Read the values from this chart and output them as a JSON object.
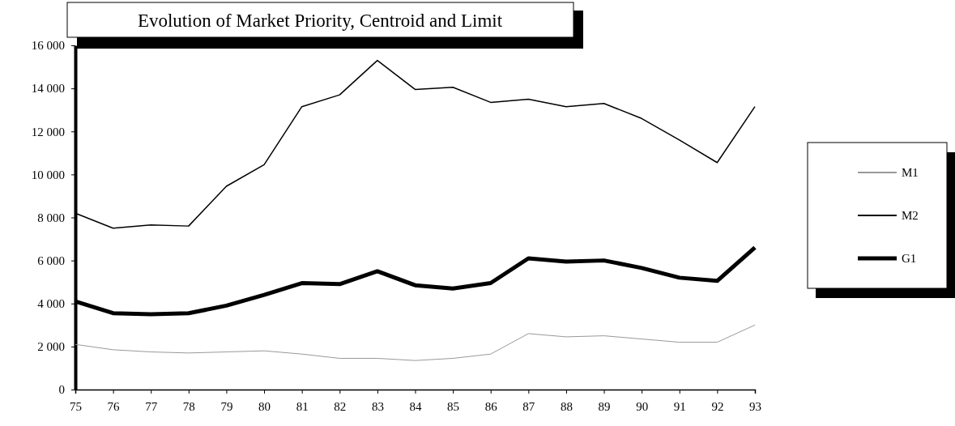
{
  "chart_data": {
    "type": "line",
    "title": "Evolution of Market Priority, Centroid and Limit",
    "categories": [
      "75",
      "76",
      "77",
      "78",
      "79",
      "80",
      "81",
      "82",
      "83",
      "84",
      "85",
      "86",
      "87",
      "88",
      "89",
      "90",
      "91",
      "92",
      "93"
    ],
    "series": [
      {
        "name": "M1",
        "color": "#999999",
        "values": [
          2100,
          1850,
          1750,
          1700,
          1750,
          1800,
          1650,
          1450,
          1450,
          1350,
          1450,
          1650,
          2600,
          2450,
          2500,
          2350,
          2200,
          2200,
          3000
        ]
      },
      {
        "name": "M2",
        "color": "#000000",
        "values": [
          8200,
          7500,
          7650,
          7600,
          9450,
          10450,
          13150,
          13700,
          15300,
          13950,
          14050,
          13350,
          13500,
          13150,
          13300,
          12600,
          11600,
          10550,
          13150
        ]
      },
      {
        "name": "G1",
        "color": "#000000",
        "values": [
          4100,
          3550,
          3500,
          3550,
          3900,
          4400,
          4950,
          4900,
          5500,
          4850,
          4700,
          4950,
          6100,
          5950,
          6000,
          5650,
          5200,
          5050,
          6600
        ]
      }
    ],
    "ylim": [
      0,
      16000
    ],
    "yticks": [
      0,
      {
        "value": 2000,
        "label": "2 000"
      },
      {
        "value": 4000,
        "label": "4 000"
      },
      {
        "value": 6000,
        "label": "6 000"
      },
      {
        "value": 8000,
        "label": "8 000"
      },
      {
        "value": 10000,
        "label": "10 000"
      },
      {
        "value": 12000,
        "label": "12 000"
      },
      {
        "value": 14000,
        "label": "14 000"
      },
      {
        "value": 16000,
        "label": "16 000"
      }
    ],
    "grid": false,
    "legend": "right",
    "marker": "none",
    "line_style": "solid"
  }
}
